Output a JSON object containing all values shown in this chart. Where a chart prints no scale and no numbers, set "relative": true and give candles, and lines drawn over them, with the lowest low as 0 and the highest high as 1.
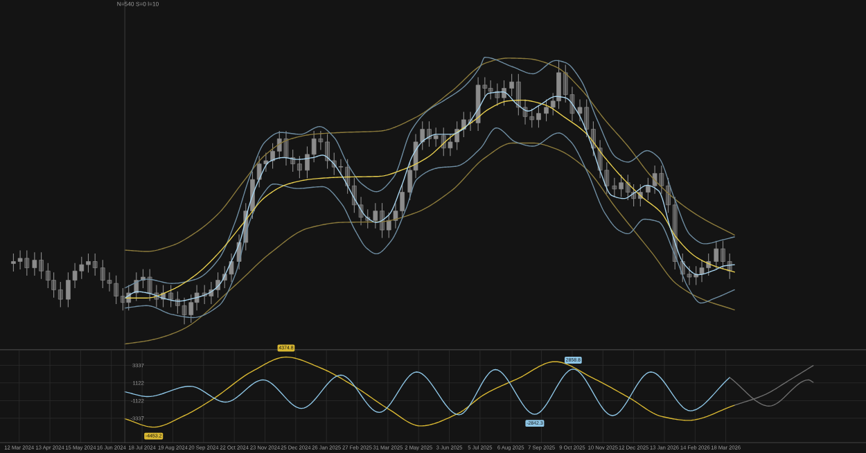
{
  "chart_data": [
    {
      "type": "candlestick",
      "relative": true,
      "color": "#8c8c8c",
      "xlim": [
        "2024-02-21",
        "2026-08-11"
      ],
      "annotations": [
        "N=540 S=0 l=10"
      ],
      "x": [
        "2024-03-06",
        "2024-03-13",
        "2024-03-20",
        "2024-03-28",
        "2024-04-04",
        "2024-04-11",
        "2024-04-17",
        "2024-04-24",
        "2024-05-02",
        "2024-05-09",
        "2024-05-16",
        "2024-05-23",
        "2024-05-30",
        "2024-06-07",
        "2024-06-14",
        "2024-06-21",
        "2024-06-28",
        "2024-07-04",
        "2024-07-12",
        "2024-07-19",
        "2024-07-26",
        "2024-08-02",
        "2024-08-09",
        "2024-08-17",
        "2024-08-24",
        "2024-08-31",
        "2024-09-07",
        "2024-09-13",
        "2024-09-21",
        "2024-09-28",
        "2024-10-05",
        "2024-10-12",
        "2024-10-19",
        "2024-10-27",
        "2024-11-03",
        "2024-11-10",
        "2024-11-17",
        "2024-11-24",
        "2024-12-01",
        "2024-12-08",
        "2024-12-15",
        "2024-12-22",
        "2024-12-29",
        "2025-01-06",
        "2025-01-13",
        "2025-01-20",
        "2025-01-27",
        "2025-02-03",
        "2025-02-10",
        "2025-02-17",
        "2025-02-24",
        "2025-03-03",
        "2025-03-10",
        "2025-03-18",
        "2025-03-25",
        "2025-04-01",
        "2025-04-08",
        "2025-04-15",
        "2025-04-23",
        "2025-04-29",
        "2025-05-06",
        "2025-05-13",
        "2025-05-20",
        "2025-05-28",
        "2025-06-04",
        "2025-06-11",
        "2025-06-18",
        "2025-06-25",
        "2025-07-03",
        "2025-07-10",
        "2025-07-16",
        "2025-07-23",
        "2025-07-30",
        "2025-08-07",
        "2025-08-14",
        "2025-08-21",
        "2025-08-28",
        "2025-09-04",
        "2025-09-12",
        "2025-09-19",
        "2025-09-25",
        "2025-10-02",
        "2025-10-09",
        "2025-10-17",
        "2025-10-24",
        "2025-10-31",
        "2025-11-07",
        "2025-11-14",
        "2025-11-22",
        "2025-11-29",
        "2025-12-06",
        "2025-12-12",
        "2025-12-19",
        "2025-12-27",
        "2026-01-03",
        "2026-01-10",
        "2026-01-17",
        "2026-01-24",
        "2026-02-01",
        "2026-02-08",
        "2026-02-15",
        "2026-02-21",
        "2026-02-28",
        "2026-03-08",
        "2026-03-15",
        "2026-03-22"
      ],
      "ohlc": [
        [
          0.23,
          0.268,
          0.2,
          0.238
        ],
        [
          0.238,
          0.28,
          0.208,
          0.25
        ],
        [
          0.25,
          0.28,
          0.184,
          0.214
        ],
        [
          0.214,
          0.273,
          0.184,
          0.243
        ],
        [
          0.243,
          0.273,
          0.172,
          0.202
        ],
        [
          0.202,
          0.232,
          0.137,
          0.167
        ],
        [
          0.167,
          0.197,
          0.101,
          0.131
        ],
        [
          0.131,
          0.161,
          0.065,
          0.095
        ],
        [
          0.095,
          0.197,
          0.065,
          0.167
        ],
        [
          0.167,
          0.232,
          0.137,
          0.202
        ],
        [
          0.202,
          0.256,
          0.172,
          0.226
        ],
        [
          0.226,
          0.268,
          0.196,
          0.238
        ],
        [
          0.238,
          0.268,
          0.184,
          0.214
        ],
        [
          0.214,
          0.244,
          0.137,
          0.167
        ],
        [
          0.167,
          0.197,
          0.125,
          0.155
        ],
        [
          0.155,
          0.185,
          0.077,
          0.107
        ],
        [
          0.107,
          0.137,
          0.053,
          0.083
        ],
        [
          0.083,
          0.149,
          0.053,
          0.119
        ],
        [
          0.119,
          0.197,
          0.089,
          0.167
        ],
        [
          0.167,
          0.209,
          0.137,
          0.179
        ],
        [
          0.179,
          0.209,
          0.089,
          0.119
        ],
        [
          0.119,
          0.149,
          0.065,
          0.095
        ],
        [
          0.095,
          0.149,
          0.065,
          0.119
        ],
        [
          0.119,
          0.149,
          0.065,
          0.095
        ],
        [
          0.095,
          0.125,
          0.041,
          0.071
        ],
        [
          0.071,
          0.101,
          0,
          0.036
        ],
        [
          0.036,
          0.113,
          0.006,
          0.083
        ],
        [
          0.083,
          0.149,
          0.053,
          0.119
        ],
        [
          0.119,
          0.149,
          0.077,
          0.107
        ],
        [
          0.107,
          0.161,
          0.077,
          0.131
        ],
        [
          0.131,
          0.197,
          0.101,
          0.167
        ],
        [
          0.167,
          0.22,
          0.137,
          0.19
        ],
        [
          0.19,
          0.268,
          0.16,
          0.238
        ],
        [
          0.238,
          0.34,
          0.208,
          0.31
        ],
        [
          0.31,
          0.459,
          0.28,
          0.429
        ],
        [
          0.429,
          0.578,
          0.399,
          0.548
        ],
        [
          0.548,
          0.637,
          0.518,
          0.607
        ],
        [
          0.607,
          0.649,
          0.577,
          0.619
        ],
        [
          0.619,
          0.685,
          0.589,
          0.655
        ],
        [
          0.655,
          0.732,
          0.625,
          0.702
        ],
        [
          0.702,
          0.732,
          0.601,
          0.631
        ],
        [
          0.631,
          0.661,
          0.577,
          0.607
        ],
        [
          0.607,
          0.637,
          0.553,
          0.583
        ],
        [
          0.583,
          0.673,
          0.553,
          0.643
        ],
        [
          0.643,
          0.732,
          0.613,
          0.702
        ],
        [
          0.702,
          0.732,
          0.66,
          0.69
        ],
        [
          0.69,
          0.72,
          0.589,
          0.619
        ],
        [
          0.619,
          0.649,
          0.565,
          0.595
        ],
        [
          0.595,
          0.625,
          0.565,
          0.595
        ],
        [
          0.595,
          0.625,
          0.494,
          0.524
        ],
        [
          0.524,
          0.554,
          0.422,
          0.452
        ],
        [
          0.452,
          0.482,
          0.375,
          0.405
        ],
        [
          0.405,
          0.435,
          0.363,
          0.393
        ],
        [
          0.393,
          0.459,
          0.363,
          0.429
        ],
        [
          0.429,
          0.459,
          0.327,
          0.357
        ],
        [
          0.357,
          0.423,
          0.327,
          0.393
        ],
        [
          0.393,
          0.459,
          0.363,
          0.429
        ],
        [
          0.429,
          0.53,
          0.399,
          0.5
        ],
        [
          0.5,
          0.613,
          0.47,
          0.583
        ],
        [
          0.583,
          0.72,
          0.553,
          0.69
        ],
        [
          0.69,
          0.768,
          0.66,
          0.738
        ],
        [
          0.738,
          0.768,
          0.672,
          0.702
        ],
        [
          0.702,
          0.744,
          0.672,
          0.714
        ],
        [
          0.714,
          0.744,
          0.637,
          0.667
        ],
        [
          0.667,
          0.72,
          0.637,
          0.69
        ],
        [
          0.69,
          0.768,
          0.66,
          0.738
        ],
        [
          0.738,
          0.804,
          0.708,
          0.774
        ],
        [
          0.774,
          0.804,
          0.732,
          0.762
        ],
        [
          0.762,
          0.935,
          0.732,
          0.905
        ],
        [
          0.905,
          0.935,
          0.863,
          0.893
        ],
        [
          0.893,
          0.923,
          0.851,
          0.881
        ],
        [
          0.881,
          0.911,
          0.827,
          0.857
        ],
        [
          0.857,
          0.923,
          0.827,
          0.893
        ],
        [
          0.893,
          0.947,
          0.863,
          0.917
        ],
        [
          0.917,
          0.947,
          0.791,
          0.821
        ],
        [
          0.821,
          0.851,
          0.756,
          0.786
        ],
        [
          0.786,
          0.816,
          0.744,
          0.774
        ],
        [
          0.774,
          0.828,
          0.744,
          0.798
        ],
        [
          0.798,
          0.851,
          0.768,
          0.821
        ],
        [
          0.821,
          0.875,
          0.791,
          0.845
        ],
        [
          0.845,
          1,
          0.815,
          0.952
        ],
        [
          0.952,
          0.982,
          0.839,
          0.869
        ],
        [
          0.869,
          0.899,
          0.768,
          0.798
        ],
        [
          0.798,
          0.851,
          0.768,
          0.821
        ],
        [
          0.821,
          0.851,
          0.708,
          0.738
        ],
        [
          0.738,
          0.768,
          0.637,
          0.667
        ],
        [
          0.667,
          0.697,
          0.553,
          0.583
        ],
        [
          0.583,
          0.613,
          0.494,
          0.524
        ],
        [
          0.524,
          0.554,
          0.482,
          0.512
        ],
        [
          0.512,
          0.566,
          0.482,
          0.536
        ],
        [
          0.536,
          0.566,
          0.47,
          0.5
        ],
        [
          0.5,
          0.53,
          0.446,
          0.476
        ],
        [
          0.476,
          0.53,
          0.446,
          0.5
        ],
        [
          0.5,
          0.554,
          0.47,
          0.524
        ],
        [
          0.524,
          0.601,
          0.494,
          0.571
        ],
        [
          0.571,
          0.601,
          0.494,
          0.524
        ],
        [
          0.524,
          0.554,
          0.422,
          0.452
        ],
        [
          0.452,
          0.482,
          0.208,
          0.238
        ],
        [
          0.238,
          0.268,
          0.16,
          0.19
        ],
        [
          0.19,
          0.22,
          0.149,
          0.179
        ],
        [
          0.179,
          0.22,
          0.149,
          0.19
        ],
        [
          0.19,
          0.244,
          0.16,
          0.214
        ],
        [
          0.214,
          0.268,
          0.184,
          0.238
        ],
        [
          0.238,
          0.316,
          0.208,
          0.286
        ],
        [
          0.286,
          0.316,
          0.208,
          0.238
        ],
        [
          0.238,
          0.268,
          0.172,
          0.202
        ]
      ],
      "series": [
        {
          "type": "line",
          "color": "#8c7b3c",
          "x": [
            "2024-06-30",
            "2024-07-23",
            "2024-08-18",
            "2024-09-12",
            "2024-10-06",
            "2024-10-31",
            "2024-11-23",
            "2024-12-17",
            "2025-01-12",
            "2025-02-12",
            "2025-03-22",
            "2025-04-28",
            "2025-06-05",
            "2025-07-12",
            "2025-08-03",
            "2025-08-23",
            "2025-09-22",
            "2025-10-18",
            "2025-11-12",
            "2025-12-06",
            "2025-12-31",
            "2026-01-25",
            "2026-02-20",
            "2026-03-27"
          ],
          "values": [
            0.281,
            0.276,
            0.298,
            0.348,
            0.421,
            0.538,
            0.64,
            0.698,
            0.719,
            0.726,
            0.731,
            0.781,
            0.881,
            0.99,
            1.007,
            1.005,
            0.974,
            0.89,
            0.774,
            0.674,
            0.557,
            0.471,
            0.405,
            0.338
          ]
        },
        {
          "type": "line",
          "color": "#8c7b3c",
          "x": [
            "2024-06-30",
            "2024-07-26",
            "2024-08-28",
            "2024-10-23",
            "2024-11-29",
            "2025-01-07",
            "2025-02-12",
            "2025-03-22",
            "2025-04-28",
            "2025-06-05",
            "2025-07-10",
            "2025-08-08",
            "2025-08-29",
            "2025-09-22",
            "2025-10-23",
            "2025-11-24",
            "2025-12-31",
            "2026-01-25",
            "2026-02-20",
            "2026-03-27"
          ],
          "values": [
            -0.074,
            -0.06,
            -0.021,
            0.148,
            0.271,
            0.364,
            0.386,
            0.388,
            0.421,
            0.505,
            0.63,
            0.686,
            0.686,
            0.664,
            0.59,
            0.438,
            0.271,
            0.155,
            0.098,
            0.055
          ]
        },
        {
          "type": "line",
          "color": "#6f8ea3",
          "x": [
            "2024-06-30",
            "2024-07-23",
            "2024-08-18",
            "2024-09-12",
            "2024-10-06",
            "2024-10-23",
            "2024-11-07",
            "2024-11-23",
            "2024-12-09",
            "2024-12-30",
            "2025-01-19",
            "2025-02-03",
            "2025-02-17",
            "2025-03-04",
            "2025-03-19",
            "2025-04-06",
            "2025-04-24",
            "2025-05-11",
            "2025-05-29",
            "2025-06-18",
            "2025-07-05",
            "2025-07-10",
            "2025-08-08",
            "2025-08-29",
            "2025-09-22",
            "2025-10-02",
            "2025-10-18",
            "2025-11-04",
            "2025-11-24",
            "2025-12-06",
            "2025-12-26",
            "2026-01-07",
            "2026-01-23",
            "2026-02-09",
            "2026-02-24",
            "2026-03-16",
            "2026-03-27"
          ],
          "values": [
            0.138,
            0.171,
            0.155,
            0.171,
            0.248,
            0.388,
            0.557,
            0.69,
            0.726,
            0.719,
            0.748,
            0.707,
            0.607,
            0.531,
            0.502,
            0.557,
            0.731,
            0.807,
            0.848,
            0.898,
            0.974,
            1.01,
            0.974,
            0.948,
            0.998,
            0.99,
            0.924,
            0.774,
            0.631,
            0.614,
            0.657,
            0.631,
            0.481,
            0.338,
            0.305,
            0.321,
            0.331
          ]
        },
        {
          "type": "line",
          "color": "#6f8ea3",
          "x": [
            "2024-06-30",
            "2024-07-23",
            "2024-08-18",
            "2024-09-09",
            "2024-10-06",
            "2024-10-23",
            "2024-11-07",
            "2024-11-20",
            "2024-12-02",
            "2024-12-27",
            "2025-01-22",
            "2025-02-11",
            "2025-02-25",
            "2025-03-09",
            "2025-03-19",
            "2025-04-03",
            "2025-04-19",
            "2025-04-30",
            "2025-05-24",
            "2025-06-10",
            "2025-07-05",
            "2025-07-22",
            "2025-08-11",
            "2025-08-29",
            "2025-09-25",
            "2025-10-07",
            "2025-10-25",
            "2025-11-12",
            "2025-11-27",
            "2025-12-06",
            "2025-12-23",
            "2026-01-07",
            "2026-01-23",
            "2026-02-07",
            "2026-02-20",
            "2026-03-06",
            "2026-03-27"
          ],
          "values": [
            0.062,
            0.071,
            0.038,
            0.026,
            0.071,
            0.188,
            0.388,
            0.488,
            0.531,
            0.514,
            0.521,
            0.455,
            0.355,
            0.288,
            0.267,
            0.314,
            0.438,
            0.548,
            0.593,
            0.598,
            0.664,
            0.743,
            0.69,
            0.674,
            0.724,
            0.693,
            0.574,
            0.421,
            0.355,
            0.343,
            0.398,
            0.388,
            0.271,
            0.138,
            0.081,
            0.098,
            0.131
          ]
        },
        {
          "type": "line",
          "color": "#e8cf4f",
          "x": [
            "2024-06-30",
            "2024-07-23",
            "2024-08-18",
            "2024-09-12",
            "2024-10-06",
            "2024-10-31",
            "2024-11-23",
            "2024-12-17",
            "2025-01-12",
            "2025-02-12",
            "2025-03-22",
            "2025-04-16",
            "2025-05-11",
            "2025-06-05",
            "2025-06-30",
            "2025-07-14",
            "2025-08-03",
            "2025-08-18",
            "2025-09-10",
            "2025-10-02",
            "2025-10-23",
            "2025-11-12",
            "2025-12-02",
            "2025-12-21",
            "2026-01-10",
            "2026-01-25",
            "2026-02-15",
            "2026-03-06",
            "2026-03-27"
          ],
          "values": [
            0.1,
            0.1,
            0.131,
            0.188,
            0.271,
            0.381,
            0.481,
            0.531,
            0.55,
            0.557,
            0.56,
            0.586,
            0.631,
            0.71,
            0.774,
            0.814,
            0.845,
            0.848,
            0.831,
            0.781,
            0.724,
            0.631,
            0.548,
            0.481,
            0.421,
            0.331,
            0.255,
            0.221,
            0.198
          ]
        },
        {
          "type": "line",
          "color": "#a8d4ee",
          "x": [
            "2024-06-30",
            "2024-07-13",
            "2024-07-26",
            "2024-08-10",
            "2024-08-25",
            "2024-09-09",
            "2024-09-23",
            "2024-10-06",
            "2024-10-18",
            "2024-10-28",
            "2024-11-07",
            "2024-11-18",
            "2024-11-27",
            "2024-12-12",
            "2024-12-27",
            "2025-01-12",
            "2025-01-22",
            "2025-02-01",
            "2025-02-12",
            "2025-02-25",
            "2025-03-09",
            "2025-03-19",
            "2025-04-01",
            "2025-04-14",
            "2025-04-26",
            "2025-05-08",
            "2025-05-21",
            "2025-06-05",
            "2025-06-18",
            "2025-07-03",
            "2025-07-14",
            "2025-07-29",
            "2025-08-13",
            "2025-08-24",
            "2025-09-05",
            "2025-09-22",
            "2025-10-02",
            "2025-10-15",
            "2025-10-28",
            "2025-11-07",
            "2025-11-19",
            "2025-12-02",
            "2025-12-13",
            "2025-12-26",
            "2026-01-07",
            "2026-01-20",
            "2026-02-02",
            "2026-02-17",
            "2026-03-06",
            "2026-03-16",
            "2026-03-27"
          ],
          "values": [
            0.1,
            0.124,
            0.117,
            0.098,
            0.088,
            0.098,
            0.114,
            0.148,
            0.231,
            0.314,
            0.455,
            0.557,
            0.614,
            0.631,
            0.624,
            0.631,
            0.64,
            0.614,
            0.557,
            0.471,
            0.405,
            0.386,
            0.414,
            0.521,
            0.64,
            0.698,
            0.719,
            0.719,
            0.74,
            0.814,
            0.874,
            0.879,
            0.831,
            0.807,
            0.829,
            0.862,
            0.857,
            0.8,
            0.69,
            0.581,
            0.488,
            0.476,
            0.498,
            0.526,
            0.505,
            0.355,
            0.231,
            0.188,
            0.205,
            0.221,
            0.226
          ]
        }
      ]
    },
    {
      "type": "line",
      "xlim": [
        "2024-02-21",
        "2026-08-11"
      ],
      "ylim": [
        -6400,
        5300
      ],
      "yticks": [
        3337,
        1122,
        -1122,
        -3337
      ],
      "grid": true,
      "xticks": [
        {
          "value": "2024-03-12",
          "label": "12 Mar 2024"
        },
        {
          "value": "2024-04-13",
          "label": "13 Apr 2024"
        },
        {
          "value": "2024-05-15",
          "label": "15 May 2024"
        },
        {
          "value": "2024-06-16",
          "label": "16 Jun 2024"
        },
        {
          "value": "2024-07-18",
          "label": "18 Jul 2024"
        },
        {
          "value": "2024-08-19",
          "label": "19 Aug 2024"
        },
        {
          "value": "2024-09-20",
          "label": "20 Sep 2024"
        },
        {
          "value": "2024-10-22",
          "label": "22 Oct 2024"
        },
        {
          "value": "2024-11-23",
          "label": "23 Nov 2024"
        },
        {
          "value": "2024-12-25",
          "label": "25 Dec 2024"
        },
        {
          "value": "2025-01-26",
          "label": "26 Jan 2025"
        },
        {
          "value": "2025-02-27",
          "label": "27 Feb 2025"
        },
        {
          "value": "2025-03-31",
          "label": "31 Mar 2025"
        },
        {
          "value": "2025-05-02",
          "label": "2 May 2025"
        },
        {
          "value": "2025-06-03",
          "label": "3 Jun 2025"
        },
        {
          "value": "2025-07-05",
          "label": "5 Jul 2025"
        },
        {
          "value": "2025-08-06",
          "label": "6 Aug 2025"
        },
        {
          "value": "2025-09-07",
          "label": "7 Sep 2025"
        },
        {
          "value": "2025-10-09",
          "label": "9 Oct 2025"
        },
        {
          "value": "2025-11-10",
          "label": "10 Nov 2025"
        },
        {
          "value": "2025-12-12",
          "label": "12 Dec 2025"
        },
        {
          "value": "2026-01-13",
          "label": "13 Jan 2026"
        },
        {
          "value": "2026-02-14",
          "label": "14 Feb 2026"
        },
        {
          "value": "2026-03-18",
          "label": "18 Mar 2026"
        }
      ],
      "series": [
        {
          "color": "#d9b832",
          "x": [
            "2024-06-30",
            "2024-07-30",
            "2024-08-31",
            "2024-09-30",
            "2024-11-10",
            "2024-12-15",
            "2025-01-20",
            "2025-02-24",
            "2025-04-01",
            "2025-05-04",
            "2025-06-11",
            "2025-07-10",
            "2025-08-14",
            "2025-09-21",
            "2025-10-31",
            "2025-12-08",
            "2026-01-10",
            "2026-02-07",
            "2026-03-27"
          ],
          "values": [
            -3400,
            -4453.2,
            -3000,
            -900,
            2600,
            4374.8,
            3000,
            700,
            -2200,
            -4300,
            -2800,
            -300,
            1700,
            3800,
            1700,
            -800,
            -3100,
            -3600,
            -1700
          ],
          "value_labels": [
            null,
            "-4453.2",
            null,
            null,
            null,
            "4374.8",
            null,
            null,
            null,
            null,
            null,
            null,
            null,
            null,
            null,
            null,
            null,
            null,
            null
          ]
        },
        {
          "color": "#6e6e6e",
          "x": [
            "2026-03-27",
            "2026-04-27",
            "2026-05-25",
            "2026-06-17"
          ],
          "values": [
            -1700,
            -400,
            1600,
            3300
          ]
        },
        {
          "color": "#8ec6e6",
          "x": [
            "2024-06-30",
            "2024-07-24",
            "2024-09-06",
            "2024-10-13",
            "2024-11-21",
            "2024-12-31",
            "2025-02-10",
            "2025-03-22",
            "2025-04-30",
            "2025-06-13",
            "2025-07-21",
            "2025-08-31",
            "2025-10-10",
            "2025-11-20",
            "2025-12-30",
            "2026-02-09",
            "2026-03-22"
          ],
          "values": [
            0,
            -600,
            700,
            -1300,
            1500,
            -2100,
            2100,
            -2600,
            2500,
            -2900,
            2800,
            -2842.3,
            2858.8,
            -3000,
            2500,
            -2400,
            1800
          ],
          "value_labels": [
            null,
            null,
            null,
            null,
            null,
            null,
            null,
            null,
            null,
            null,
            null,
            "-2842.3",
            "2858.8",
            null,
            null,
            null,
            null
          ]
        },
        {
          "color": "#6e6e6e",
          "x": [
            "2026-03-22",
            "2026-05-02",
            "2026-06-12",
            "2026-06-17"
          ],
          "values": [
            1800,
            -1800,
            1500,
            1200
          ]
        }
      ]
    }
  ]
}
